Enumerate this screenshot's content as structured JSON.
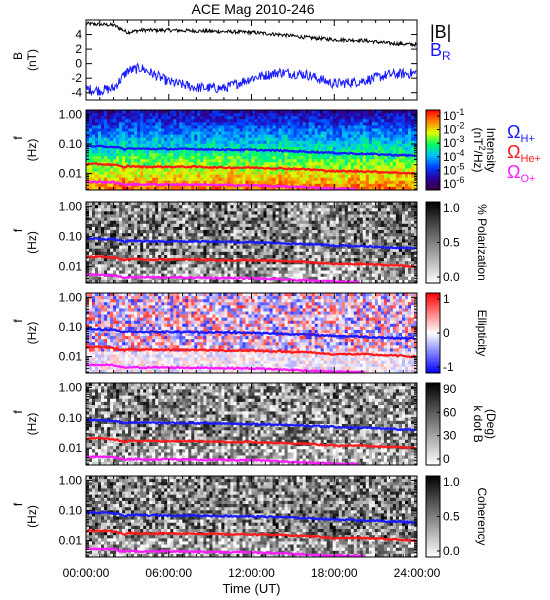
{
  "title": "ACE Mag 2010-246",
  "colors": {
    "B_total": "#000000",
    "B_R": "#1a1aff",
    "omega_H": "#1a1aff",
    "omega_He": "#ff1a1a",
    "omega_O": "#ff1aff"
  },
  "xaxis": {
    "label": "Time (UT)",
    "ticks": [
      "00:00:00",
      "06:00:00",
      "12:00:00",
      "18:00:00",
      "24:00:00"
    ],
    "range_hours": [
      0,
      24
    ]
  },
  "chart_data": [
    {
      "type": "line",
      "id": "mag",
      "ylabel_top": "B",
      "ylabel_bottom": "(nT)",
      "ylim": [
        -5,
        6
      ],
      "yticks": [
        "4",
        "2",
        "0",
        "-2",
        "-4"
      ],
      "ytick_values": [
        4,
        2,
        0,
        -2,
        -4
      ],
      "x": [
        0,
        1,
        2,
        3,
        4,
        6,
        8,
        10,
        12,
        14,
        16,
        18,
        20,
        22,
        24
      ],
      "series": [
        {
          "name": "|B|",
          "color": "#000000",
          "values": [
            5.5,
            5.4,
            5.3,
            4.3,
            4.6,
            4.6,
            4.5,
            4.4,
            4.3,
            4.0,
            3.6,
            3.3,
            3.2,
            2.8,
            2.6
          ]
        },
        {
          "name": "B",
          "subscript": "R",
          "color": "#1a1aff",
          "values": [
            -3.5,
            -3.7,
            -3.4,
            -1.0,
            -0.6,
            -2.5,
            -3.3,
            -3.4,
            -2.0,
            -1.2,
            -1.5,
            -2.8,
            -2.4,
            -1.5,
            -1.3
          ]
        }
      ]
    },
    {
      "type": "heatmap",
      "id": "intensity",
      "ylabel_top": "f",
      "ylabel_bottom": "(Hz)",
      "yticks": [
        "1.00",
        "0.10",
        "0.01"
      ],
      "ytick_values": [
        1.0,
        0.1,
        0.01
      ],
      "ylog": true,
      "colorbar": {
        "label": "Intensity (nT^2/Hz)",
        "label_main": "Intensity",
        "label_unit": "(nT",
        "label_unit_sup": "2",
        "label_unit_end": "/Hz)",
        "ticks": [
          "10",
          "10",
          "10",
          "10",
          "10",
          "10"
        ],
        "exponents": [
          "-1",
          "-2",
          "-3",
          "-4",
          "-5",
          "-6"
        ],
        "colors": [
          "#3a0040",
          "#2a00a0",
          "#0040ff",
          "#00c0ff",
          "#00ff60",
          "#e0ff00",
          "#ff8000",
          "#ff0000"
        ]
      },
      "legend": [
        {
          "symbol": "Ω",
          "sub": "H+",
          "color": "#1a1aff"
        },
        {
          "symbol": "Ω",
          "sub": "He+",
          "color": "#ff1a1a"
        },
        {
          "symbol": "Ω",
          "sub": "O+",
          "color": "#ff1aff"
        }
      ]
    },
    {
      "type": "heatmap",
      "id": "polarization",
      "ylabel_top": "f",
      "ylabel_bottom": "(Hz)",
      "yticks": [
        "1.00",
        "0.10",
        "0.01"
      ],
      "ytick_values": [
        1.0,
        0.1,
        0.01
      ],
      "ylog": true,
      "colorbar": {
        "label": "% Polarization",
        "ticks": [
          "1.0",
          "0.5",
          "0.0"
        ],
        "colors": [
          "#ffffff",
          "#000000"
        ]
      }
    },
    {
      "type": "heatmap",
      "id": "ellipticity",
      "ylabel_top": "f",
      "ylabel_bottom": "(Hz)",
      "yticks": [
        "1.00",
        "0.10",
        "0.01"
      ],
      "ytick_values": [
        1.0,
        0.1,
        0.01
      ],
      "ylog": true,
      "colorbar": {
        "label": "Ellipticity",
        "ticks": [
          "1",
          "0",
          "-1"
        ],
        "colors": [
          "#0000ff",
          "#ffffff",
          "#ff0000"
        ]
      }
    },
    {
      "type": "heatmap",
      "id": "kdotb",
      "ylabel_top": "f",
      "ylabel_bottom": "(Hz)",
      "yticks": [
        "1.00",
        "0.10",
        "0.01"
      ],
      "ytick_values": [
        1.0,
        0.1,
        0.01
      ],
      "ylog": true,
      "colorbar": {
        "label": "k dot B",
        "label2": "(Deg)",
        "ticks": [
          "90",
          "60",
          "30",
          "0"
        ],
        "colors": [
          "#ffffff",
          "#000000"
        ]
      }
    },
    {
      "type": "heatmap",
      "id": "coherency",
      "ylabel_top": "f",
      "ylabel_bottom": "(Hz)",
      "yticks": [
        "1.00",
        "0.10",
        "0.01"
      ],
      "ytick_values": [
        1.0,
        0.1,
        0.01
      ],
      "ylog": true,
      "colorbar": {
        "label": "Coherency",
        "ticks": [
          "1.0",
          "0.5",
          "0.0"
        ],
        "colors": [
          "#ffffff",
          "#000000"
        ]
      }
    }
  ],
  "gyrofrequency_lines_hz": {
    "x": [
      0,
      1,
      2,
      2.8,
      3,
      4,
      6,
      8,
      10,
      12,
      14,
      16,
      18,
      20,
      22,
      24
    ],
    "H": [
      0.085,
      0.083,
      0.081,
      0.066,
      0.07,
      0.069,
      0.068,
      0.067,
      0.065,
      0.063,
      0.06,
      0.055,
      0.05,
      0.047,
      0.043,
      0.04
    ],
    "He": [
      0.021,
      0.021,
      0.02,
      0.016,
      0.018,
      0.017,
      0.017,
      0.017,
      0.016,
      0.016,
      0.015,
      0.014,
      0.012,
      0.012,
      0.011,
      0.01
    ],
    "O": [
      0.0053,
      0.0052,
      0.0051,
      0.0041,
      0.0044,
      0.0043,
      0.0043,
      0.0042,
      0.0041,
      0.004,
      0.0037,
      0.0034,
      0.0031,
      0.0029,
      0.0027,
      0.0025
    ]
  }
}
